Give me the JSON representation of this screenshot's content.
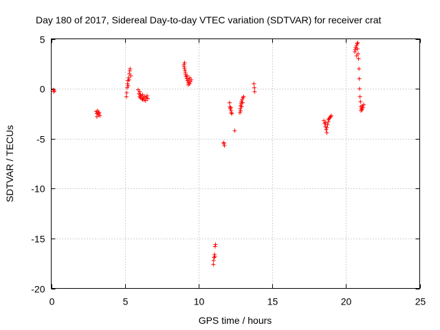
{
  "chart_data": {
    "type": "scatter",
    "title": "Day 180 of 2017, Sidereal Day-to-day VTEC variation (SDTVAR) for receiver crat",
    "xlabel": "GPS time / hours",
    "ylabel": "SDTVAR / TECUs",
    "xlim": [
      0,
      25
    ],
    "ylim": [
      -20,
      5
    ],
    "xticks": [
      0,
      5,
      10,
      15,
      20,
      25
    ],
    "xtick_labels": [
      "0",
      "5",
      "10",
      "15",
      "20",
      "25"
    ],
    "yticks": [
      5,
      0,
      -5,
      -10,
      -15,
      -20
    ],
    "ytick_labels": [
      "5",
      "0",
      "-5",
      "-10",
      "-15",
      "-20"
    ],
    "grid": true,
    "marker": "plus",
    "color": "#ff0000",
    "series": [
      {
        "name": "SDTVAR",
        "points": [
          [
            0.15,
            -0.1
          ],
          [
            0.18,
            -0.3
          ],
          [
            0.2,
            -0.2
          ],
          [
            3.05,
            -2.3
          ],
          [
            3.1,
            -2.5
          ],
          [
            3.15,
            -2.2
          ],
          [
            3.2,
            -2.6
          ],
          [
            3.25,
            -2.4
          ],
          [
            3.3,
            -2.7
          ],
          [
            3.1,
            -2.8
          ],
          [
            3.22,
            -2.45
          ],
          [
            5.1,
            -0.8
          ],
          [
            5.12,
            -0.4
          ],
          [
            5.15,
            0.1
          ],
          [
            5.18,
            0.5
          ],
          [
            5.2,
            0.8
          ],
          [
            5.25,
            1.1
          ],
          [
            5.3,
            1.5
          ],
          [
            5.33,
            1.8
          ],
          [
            5.35,
            2.0
          ],
          [
            5.28,
            0.9
          ],
          [
            5.22,
            0.3
          ],
          [
            5.4,
            1.3
          ],
          [
            5.9,
            -0.1
          ],
          [
            5.95,
            -0.5
          ],
          [
            6.0,
            -0.8
          ],
          [
            6.05,
            -0.9
          ],
          [
            6.1,
            -0.7
          ],
          [
            6.15,
            -1.0
          ],
          [
            6.2,
            -0.6
          ],
          [
            6.25,
            -0.9
          ],
          [
            6.3,
            -1.1
          ],
          [
            6.35,
            -0.8
          ],
          [
            6.4,
            -1.2
          ],
          [
            6.45,
            -0.9
          ],
          [
            6.5,
            -0.7
          ],
          [
            6.55,
            -1.0
          ],
          [
            6.0,
            -0.3
          ],
          [
            6.05,
            -0.6
          ],
          [
            6.2,
            -1.1
          ],
          [
            9.0,
            2.4
          ],
          [
            9.02,
            2.2
          ],
          [
            9.05,
            2.0
          ],
          [
            9.08,
            1.8
          ],
          [
            9.1,
            1.6
          ],
          [
            9.12,
            1.4
          ],
          [
            9.15,
            1.2
          ],
          [
            9.2,
            1.0
          ],
          [
            9.25,
            0.8
          ],
          [
            9.3,
            0.6
          ],
          [
            9.35,
            0.9
          ],
          [
            9.4,
            1.1
          ],
          [
            9.45,
            0.7
          ],
          [
            9.5,
            0.9
          ],
          [
            9.3,
            0.4
          ],
          [
            9.22,
            1.3
          ],
          [
            9.05,
            2.6
          ],
          [
            9.38,
            0.5
          ],
          [
            11.0,
            -17.6
          ],
          [
            11.02,
            -17.2
          ],
          [
            11.05,
            -16.9
          ],
          [
            11.08,
            -16.6
          ],
          [
            11.1,
            -16.8
          ],
          [
            11.12,
            -15.8
          ],
          [
            11.15,
            -15.6
          ],
          [
            11.7,
            -5.4
          ],
          [
            11.75,
            -5.7
          ],
          [
            11.72,
            -5.5
          ],
          [
            12.1,
            -1.4
          ],
          [
            12.12,
            -1.8
          ],
          [
            12.15,
            -2.0
          ],
          [
            12.2,
            -2.2
          ],
          [
            12.22,
            -2.4
          ],
          [
            12.25,
            -2.5
          ],
          [
            12.18,
            -1.9
          ],
          [
            12.45,
            -4.2
          ],
          [
            12.8,
            -2.4
          ],
          [
            12.82,
            -2.0
          ],
          [
            12.85,
            -1.7
          ],
          [
            12.88,
            -1.5
          ],
          [
            12.9,
            -1.3
          ],
          [
            12.95,
            -1.1
          ],
          [
            13.0,
            -0.9
          ],
          [
            13.05,
            -0.8
          ],
          [
            12.92,
            -1.8
          ],
          [
            12.98,
            -1.4
          ],
          [
            12.85,
            -2.2
          ],
          [
            13.75,
            0.5
          ],
          [
            13.78,
            0.1
          ],
          [
            13.8,
            -0.3
          ],
          [
            18.5,
            -3.2
          ],
          [
            18.55,
            -3.5
          ],
          [
            18.6,
            -3.8
          ],
          [
            18.65,
            -4.1
          ],
          [
            18.7,
            -4.4
          ],
          [
            18.6,
            -3.4
          ],
          [
            18.75,
            -3.6
          ],
          [
            18.8,
            -3.3
          ],
          [
            18.85,
            -3.0
          ],
          [
            18.9,
            -2.9
          ],
          [
            18.95,
            -2.8
          ],
          [
            19.0,
            -2.7
          ],
          [
            18.7,
            -3.9
          ],
          [
            18.8,
            -3.1
          ],
          [
            20.6,
            3.7
          ],
          [
            20.62,
            3.9
          ],
          [
            20.65,
            4.1
          ],
          [
            20.7,
            4.3
          ],
          [
            20.75,
            4.5
          ],
          [
            20.8,
            4.6
          ],
          [
            20.82,
            3.5
          ],
          [
            20.85,
            3.0
          ],
          [
            20.88,
            2.0
          ],
          [
            20.9,
            1.0
          ],
          [
            20.92,
            0.0
          ],
          [
            20.95,
            -0.8
          ],
          [
            20.98,
            -1.3
          ],
          [
            21.0,
            -1.8
          ],
          [
            21.02,
            -2.2
          ],
          [
            21.05,
            -2.0
          ],
          [
            21.1,
            -1.7
          ],
          [
            21.15,
            -1.9
          ],
          [
            21.2,
            -1.6
          ],
          [
            20.72,
            3.3
          ],
          [
            20.78,
            4.0
          ],
          [
            21.08,
            -2.1
          ]
        ]
      }
    ]
  }
}
